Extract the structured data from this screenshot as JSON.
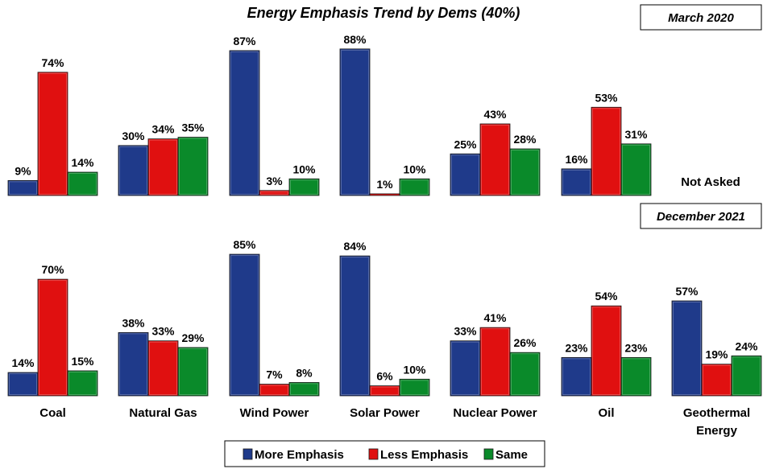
{
  "chart_data": {
    "type": "bar",
    "title": "Energy Emphasis Trend by Dems (40%)",
    "categories": [
      [
        "Coal"
      ],
      [
        "Natural Gas"
      ],
      [
        "Wind Power"
      ],
      [
        "Solar Power"
      ],
      [
        "Nuclear Power"
      ],
      [
        "Oil"
      ],
      [
        "Geothermal",
        "Energy"
      ]
    ],
    "series_names": [
      "More Emphasis",
      "Less Emphasis",
      "Same"
    ],
    "colors": {
      "more": "#1f3a8a",
      "less": "#e01010",
      "same": "#0a8a2a"
    },
    "ylim": [
      0,
      100
    ],
    "legend_position": "bottom",
    "panels": [
      {
        "period": "March 2020",
        "note": "Not Asked",
        "values": [
          [
            9,
            74,
            14
          ],
          [
            30,
            34,
            35
          ],
          [
            87,
            3,
            10
          ],
          [
            88,
            1,
            10
          ],
          [
            25,
            43,
            28
          ],
          [
            16,
            53,
            31
          ],
          null
        ],
        "labels": [
          [
            "9%",
            "74%",
            "14%"
          ],
          [
            "30%",
            "34%",
            "35%"
          ],
          [
            "87%",
            "3%",
            "10%"
          ],
          [
            "88%",
            "1%",
            "10%"
          ],
          [
            "25%",
            "43%",
            "28%"
          ],
          [
            "16%",
            "53%",
            "31%"
          ],
          null
        ]
      },
      {
        "period": "December 2021",
        "note": "",
        "values": [
          [
            14,
            70,
            15
          ],
          [
            38,
            33,
            29
          ],
          [
            85,
            7,
            8
          ],
          [
            84,
            6,
            10
          ],
          [
            33,
            41,
            26
          ],
          [
            23,
            54,
            23
          ],
          [
            57,
            19,
            24
          ]
        ],
        "labels": [
          [
            "14%",
            "70%",
            "15%"
          ],
          [
            "38%",
            "33%",
            "29%"
          ],
          [
            "85%",
            "7%",
            "8%"
          ],
          [
            "84%",
            "6%",
            "10%"
          ],
          [
            "33%",
            "41%",
            "26%"
          ],
          [
            "23%",
            "54%",
            "23%"
          ],
          [
            "57%",
            "19%",
            "24%"
          ]
        ]
      }
    ]
  }
}
